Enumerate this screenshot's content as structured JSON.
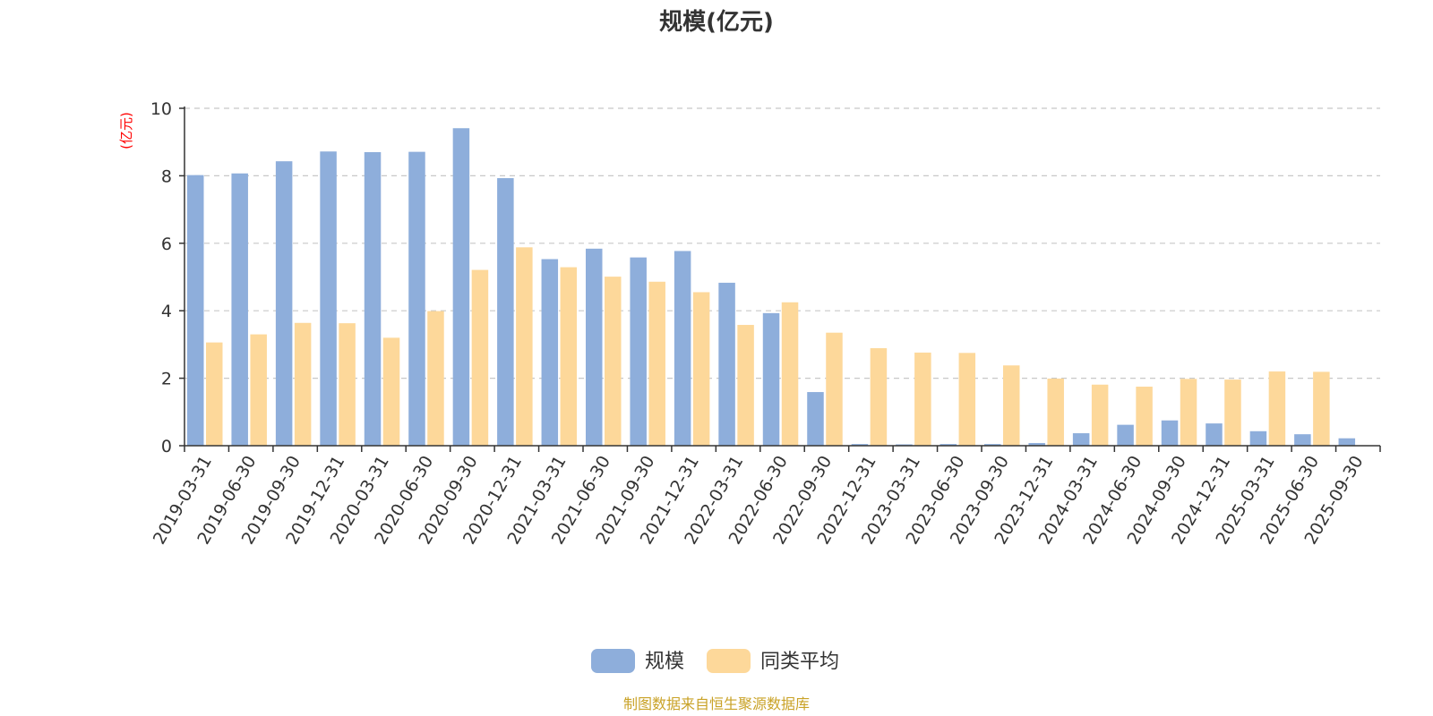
{
  "chart_data": {
    "type": "bar",
    "title": "规模(亿元)",
    "unit_label": "(亿元)",
    "categories": [
      "2019-03-31",
      "2019-06-30",
      "2019-09-30",
      "2019-12-31",
      "2020-03-31",
      "2020-06-30",
      "2020-09-30",
      "2020-12-31",
      "2021-03-31",
      "2021-06-30",
      "2021-09-30",
      "2021-12-31",
      "2022-03-31",
      "2022-06-30",
      "2022-09-30",
      "2022-12-31",
      "2023-03-31",
      "2023-06-30",
      "2023-09-30",
      "2023-12-31",
      "2024-03-31",
      "2024-06-30",
      "2024-09-30",
      "2024-12-31",
      "2025-03-31",
      "2025-06-30",
      "2025-09-30"
    ],
    "series": [
      {
        "name": "规模",
        "color": "#8eaedb",
        "values": [
          8.02,
          8.07,
          8.43,
          8.72,
          8.7,
          8.71,
          9.41,
          7.93,
          5.53,
          5.84,
          5.58,
          5.77,
          4.83,
          3.93,
          1.59,
          0.05,
          0.04,
          0.05,
          0.05,
          0.08,
          0.37,
          0.62,
          0.75,
          0.66,
          0.43,
          0.34,
          0.22
        ]
      },
      {
        "name": "同类平均",
        "color": "#fdd89a",
        "values": [
          3.06,
          3.3,
          3.64,
          3.63,
          3.2,
          3.99,
          5.21,
          5.88,
          5.29,
          5.01,
          4.86,
          4.55,
          3.58,
          4.25,
          3.35,
          2.89,
          2.76,
          2.75,
          2.38,
          1.99,
          1.81,
          1.75,
          1.98,
          1.96,
          2.2,
          2.19,
          null
        ]
      }
    ],
    "ylim": [
      0,
      10
    ],
    "yticks": [
      0,
      2,
      4,
      6,
      8,
      10
    ],
    "grid": true,
    "legend_position": "bottom-center"
  },
  "source_text": "制图数据来自恒生聚源数据库"
}
